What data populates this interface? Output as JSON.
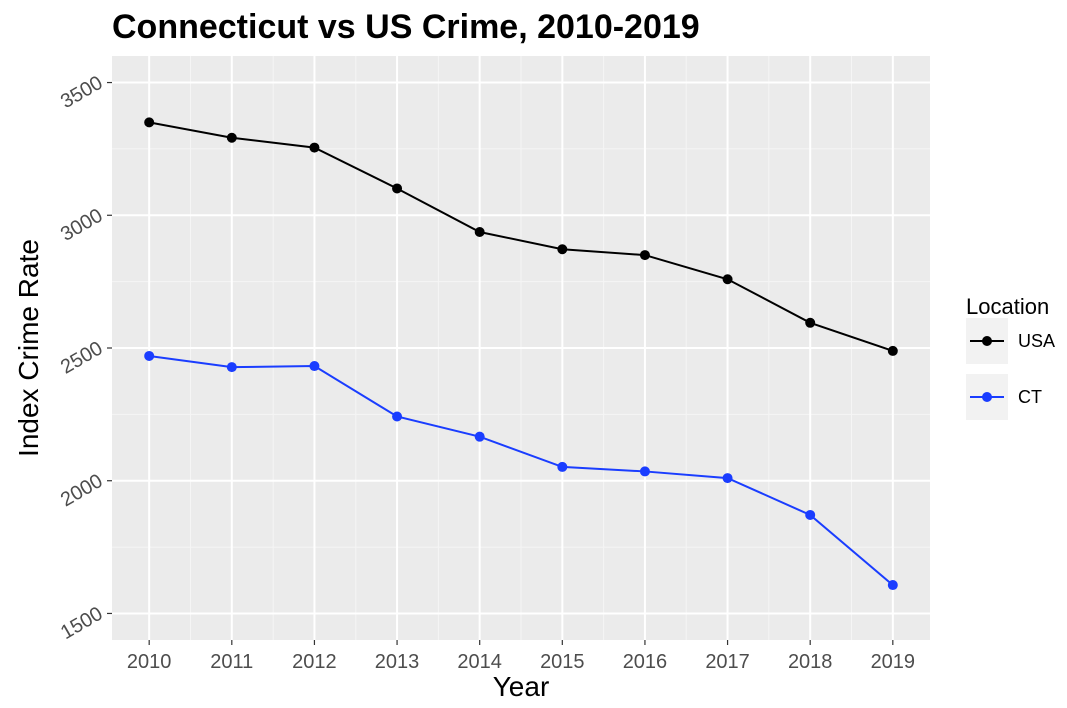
{
  "chart_data": {
    "type": "line",
    "title": "Connecticut vs US Crime, 2010-2019",
    "xlabel": "Year",
    "ylabel": "Index Crime Rate",
    "x": [
      2010,
      2011,
      2012,
      2013,
      2014,
      2015,
      2016,
      2017,
      2018,
      2019
    ],
    "x_tick_labels": [
      "2010",
      "2011",
      "2012",
      "2013",
      "2014",
      "2015",
      "2016",
      "2017",
      "2018",
      "2019"
    ],
    "y_ticks": [
      1500,
      2000,
      2500,
      3000,
      3500
    ],
    "y_tick_labels": [
      "1500",
      "2000",
      "2500",
      "3000",
      "3500"
    ],
    "ylim": [
      1400,
      3600
    ],
    "grid": true,
    "legend": {
      "title": "Location",
      "position": "right"
    },
    "series": [
      {
        "name": "USA",
        "color": "#000000",
        "values": [
          3350,
          3292,
          3255,
          3101,
          2937,
          2872,
          2850,
          2759,
          2595,
          2489
        ]
      },
      {
        "name": "CT",
        "color": "#1a3dff",
        "values": [
          2470,
          2428,
          2432,
          2242,
          2166,
          2052,
          2035,
          2010,
          1871,
          1607
        ]
      }
    ]
  }
}
